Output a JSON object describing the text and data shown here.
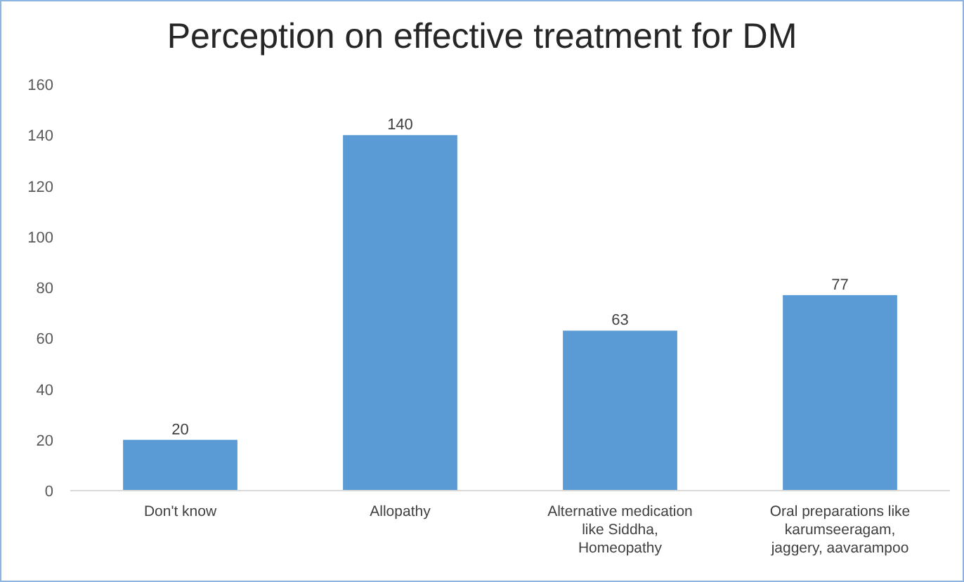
{
  "chart_data": {
    "type": "bar",
    "title": "Perception on effective treatment for DM",
    "categories": [
      "Don't know",
      "Allopathy",
      "Alternative medication like Siddha, Homeopathy",
      "Oral preparations like karumseeragam, jaggery, aavarampoo"
    ],
    "values": [
      20,
      140,
      63,
      77
    ],
    "color": "#5b9bd5",
    "ylim": [
      0,
      160
    ],
    "yticks": [
      0,
      20,
      40,
      60,
      80,
      100,
      120,
      140,
      160
    ],
    "grid": false,
    "data_labels": true
  }
}
